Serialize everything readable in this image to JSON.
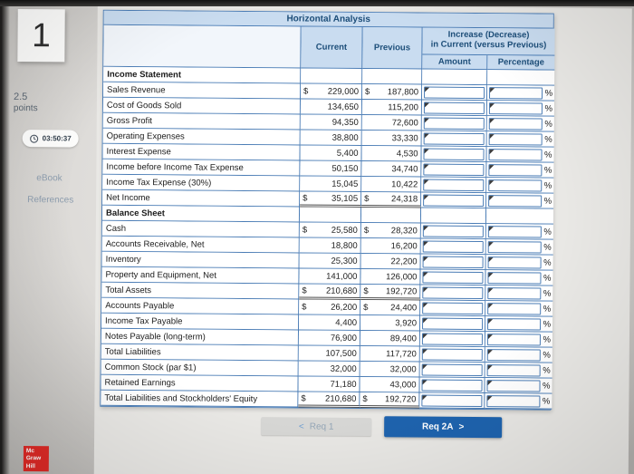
{
  "sidebar": {
    "question_number": "1",
    "points_value": "2.5",
    "points_label": "points",
    "timer": "03:50:37",
    "ebook_label": "eBook",
    "references_label": "References"
  },
  "logo": {
    "lines": [
      "Mc",
      "Graw",
      "Hill"
    ]
  },
  "table": {
    "title": "Horizontal Analysis",
    "headers": {
      "current": "Current",
      "previous": "Previous",
      "increase_line1": "Increase (Decrease)",
      "increase_line2": "in Current (versus Previous)",
      "amount": "Amount",
      "percentage": "Percentage"
    },
    "percent_suffix": "%",
    "rows": [
      {
        "label": "Income Statement",
        "section": true
      },
      {
        "label": "Sales Revenue",
        "cur_d": "$",
        "cur": "229,000",
        "prev_d": "$",
        "prev": "187,800"
      },
      {
        "label": "Cost of Goods Sold",
        "cur": "134,650",
        "prev": "115,200"
      },
      {
        "label": "Gross Profit",
        "cur": "94,350",
        "prev": "72,600"
      },
      {
        "label": "Operating Expenses",
        "cur": "38,800",
        "prev": "33,330"
      },
      {
        "label": "Interest Expense",
        "cur": "5,400",
        "prev": "4,530"
      },
      {
        "label": "Income before Income Tax Expense",
        "cur": "50,150",
        "prev": "34,740"
      },
      {
        "label": "Income Tax Expense (30%)",
        "cur": "15,045",
        "prev": "10,422"
      },
      {
        "label": "Net Income",
        "cur_d": "$",
        "cur": "35,105",
        "prev_d": "$",
        "prev": "24,318",
        "total": true
      },
      {
        "label": "Balance Sheet",
        "section": true
      },
      {
        "label": "Cash",
        "cur_d": "$",
        "cur": "25,580",
        "prev_d": "$",
        "prev": "28,320"
      },
      {
        "label": "Accounts Receivable, Net",
        "cur": "18,800",
        "prev": "16,200"
      },
      {
        "label": "Inventory",
        "cur": "25,300",
        "prev": "22,200"
      },
      {
        "label": "Property and Equipment, Net",
        "cur": "141,000",
        "prev": "126,000"
      },
      {
        "label": "Total Assets",
        "cur_d": "$",
        "cur": "210,680",
        "prev_d": "$",
        "prev": "192,720",
        "total": true
      },
      {
        "label": "Accounts Payable",
        "cur_d": "$",
        "cur": "26,200",
        "prev_d": "$",
        "prev": "24,400"
      },
      {
        "label": "Income Tax Payable",
        "cur": "4,400",
        "prev": "3,920"
      },
      {
        "label": "Notes Payable (long-term)",
        "cur": "76,900",
        "prev": "89,400"
      },
      {
        "label": "Total Liabilities",
        "cur": "107,500",
        "prev": "117,720"
      },
      {
        "label": "Common Stock (par $1)",
        "cur": "32,000",
        "prev": "32,000"
      },
      {
        "label": "Retained Earnings",
        "cur": "71,180",
        "prev": "43,000"
      },
      {
        "label": "Total Liabilities and Stockholders' Equity",
        "cur_d": "$",
        "cur": "210,680",
        "prev_d": "$",
        "prev": "192,720",
        "total": true
      }
    ]
  },
  "buttons": {
    "prev_chevron": "<",
    "prev_label": "Req 1",
    "next_label": "Req 2A",
    "next_chevron": ">"
  },
  "colors": {
    "header_bg": "#c9dcf0",
    "header_text": "#1d4e79",
    "border_blue": "#4a7cb5",
    "accent_button": "#1e63ae",
    "logo_red": "#de2a26"
  }
}
